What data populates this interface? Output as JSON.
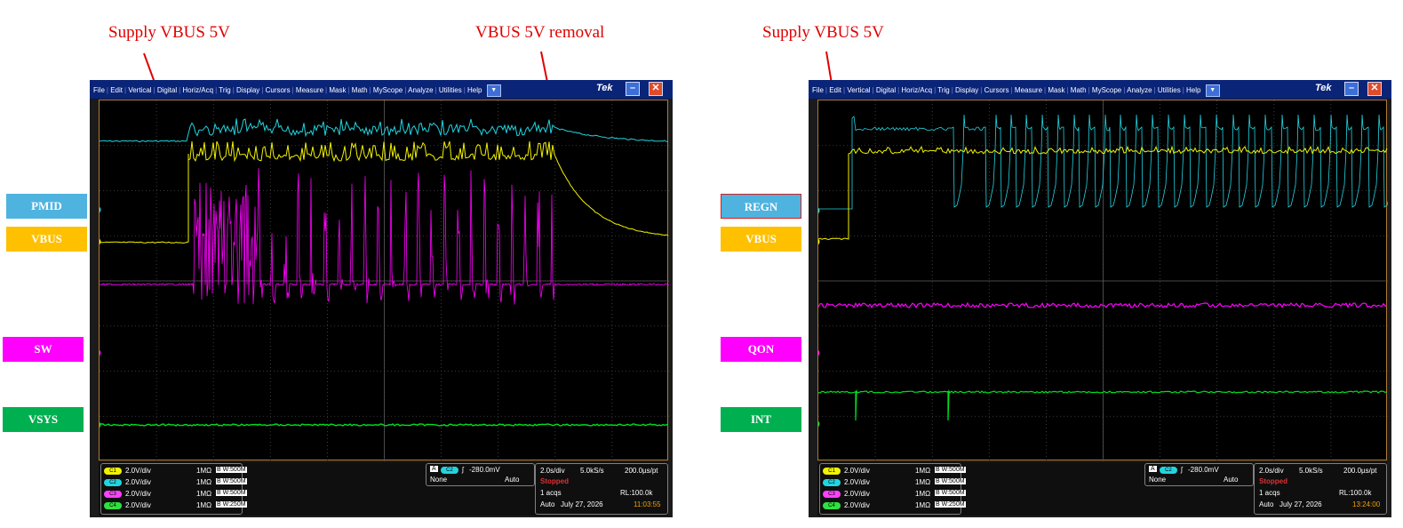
{
  "annotations": {
    "left_supply": "Supply VBUS 5V",
    "left_removal": "VBUS 5V removal",
    "right_supply": "Supply VBUS 5V"
  },
  "left_labels": [
    "PMID",
    "VBUS",
    "SW",
    "VSYS"
  ],
  "right_labels": [
    "REGN",
    "VBUS",
    "QON",
    "INT"
  ],
  "colors": {
    "ch1_yellow": "#f2f200",
    "ch2_cyan": "#22d4e0",
    "ch3_magenta": "#ff00ff",
    "ch4_green": "#00e020",
    "label_blue": "#4fb3e0",
    "label_yellow": "#ffc000",
    "label_magenta": "#ff00ff",
    "label_green": "#00b050",
    "annotation_red": "#e00000"
  },
  "menu": [
    "File",
    "Edit",
    "Vertical",
    "Digital",
    "Horiz/Acq",
    "Trig",
    "Display",
    "Cursors",
    "Measure",
    "Mask",
    "Math",
    "MyScope",
    "Analyze",
    "Utilities",
    "Help"
  ],
  "brand": "Tek",
  "channels": [
    {
      "badge": "C1",
      "vdiv": "2.0V/div",
      "imp": "1MΩ",
      "bw": "B W:500M"
    },
    {
      "badge": "C2",
      "vdiv": "2.0V/div",
      "imp": "1MΩ",
      "bw": "B W:500M"
    },
    {
      "badge": "C3",
      "vdiv": "2.0V/div",
      "imp": "1MΩ",
      "bw": "B W:500M"
    },
    {
      "badge": "C4",
      "vdiv": "2.0V/div",
      "imp": "1MΩ",
      "bw": "B W:250M"
    }
  ],
  "trigger": {
    "mode_letter": "A",
    "source": "C2",
    "level": "-280.0mV",
    "coupling": "None",
    "mode": "Auto"
  },
  "scope_left": {
    "timebase": "2.0s/div",
    "rate": "5.0kS/s",
    "res": "200.0µs/pt",
    "state": "Stopped",
    "acqs": "1 acqs",
    "rl": "RL:100.0k",
    "trig_mode": "Auto",
    "date": "July 27, 2026",
    "time": "11:03:55"
  },
  "scope_right": {
    "timebase": "2.0s/div",
    "rate": "5.0kS/s",
    "res": "200.0µs/pt",
    "state": "Stopped",
    "acqs": "1 acqs",
    "rl": "RL:100.0k",
    "trig_mode": "Auto",
    "date": "July 27, 2026",
    "time": "13:24:00"
  }
}
